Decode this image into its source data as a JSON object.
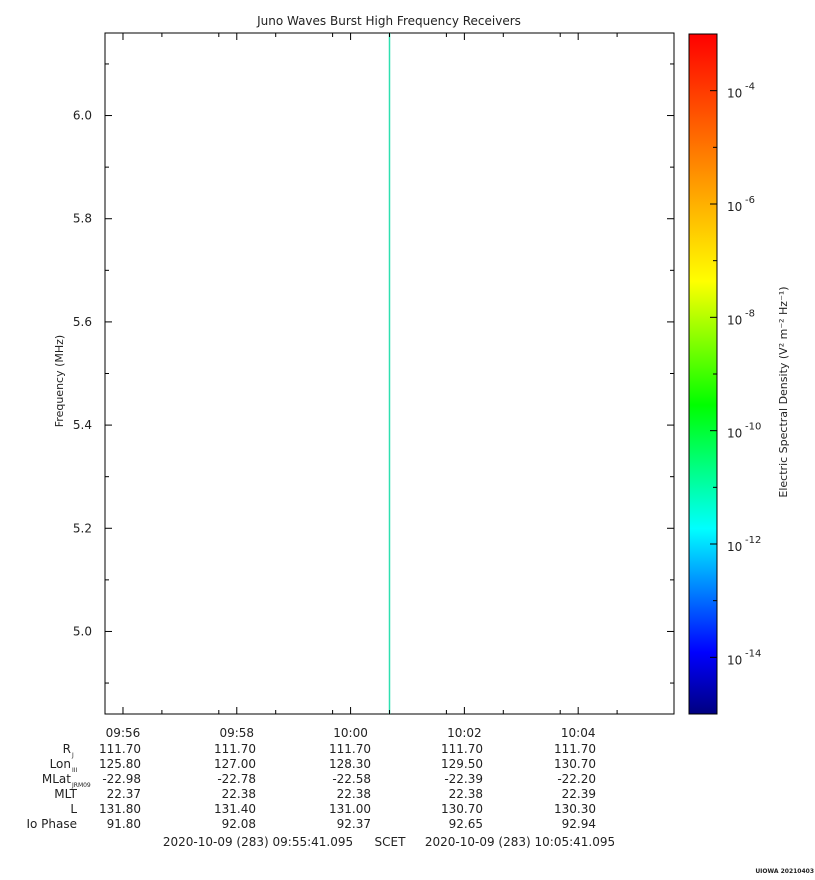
{
  "chart_data": {
    "type": "heatmap",
    "title": "Juno Waves Burst High Frequency Receivers",
    "ylabel": "Frequency (MHz)",
    "ylim": [
      4.84,
      6.16
    ],
    "y_major_ticks": [
      5.0,
      5.2,
      5.4,
      5.6,
      5.8,
      6.0
    ],
    "y_tick_labels": [
      "5.0",
      "5.2",
      "5.4",
      "5.6",
      "5.8",
      "6.0"
    ],
    "y_minor_step": 0.1,
    "x_range_minutes": [
      0,
      10
    ],
    "x_major_minutes": [
      0.316,
      2.316,
      4.316,
      6.316,
      8.316
    ],
    "x_tick_labels": [
      "09:56",
      "09:58",
      "10:00",
      "10:02",
      "10:04"
    ],
    "x_minor_step_minutes": 1,
    "event_line": {
      "x_minutes": 5.0,
      "color": "#2ee0b0"
    },
    "colorbar": {
      "label": "Electric Spectral Density (V² m⁻² Hz⁻¹)",
      "log_min": -15.0,
      "log_max": -3.0,
      "major_exponents": [
        -14,
        -12,
        -10,
        -8,
        -6,
        -4
      ],
      "major_labels": [
        "10",
        "10",
        "10",
        "10",
        "10",
        "10"
      ],
      "major_sup": [
        "-14",
        "-12",
        "-10",
        "-8",
        "-6",
        "-4"
      ],
      "colors": [
        "#000080",
        "#0000ff",
        "#0080ff",
        "#00ffff",
        "#00ff80",
        "#00ff00",
        "#80ff00",
        "#ffff00",
        "#ffc000",
        "#ff8000",
        "#ff4000",
        "#ff0000"
      ]
    },
    "ephemeris": {
      "rows": [
        {
          "label": "R",
          "sub": "J",
          "values": [
            "111.70",
            "111.70",
            "111.70",
            "111.70",
            "111.70"
          ]
        },
        {
          "label": "Lon",
          "sub": "III",
          "values": [
            "125.80",
            "127.00",
            "128.30",
            "129.50",
            "130.70"
          ]
        },
        {
          "label": "MLat",
          "sub": "JRM09",
          "values": [
            "-22.98",
            "-22.78",
            "-22.58",
            "-22.39",
            "-22.20"
          ]
        },
        {
          "label": "MLT",
          "sub": "",
          "values": [
            "22.37",
            "22.38",
            "22.38",
            "22.38",
            "22.39"
          ]
        },
        {
          "label": "L",
          "sub": "",
          "values": [
            "131.80",
            "131.40",
            "131.00",
            "130.70",
            "130.30"
          ]
        },
        {
          "label": "Io Phase",
          "sub": "",
          "values": [
            "91.80",
            "92.08",
            "92.37",
            "92.65",
            "92.94"
          ]
        }
      ]
    },
    "time_range_start": "2020-10-09 (283) 09:55:41.095",
    "time_range_mid": "SCET",
    "time_range_end": "2020-10-09 (283) 10:05:41.095",
    "footer_tag": "UIOWA 20210403"
  }
}
